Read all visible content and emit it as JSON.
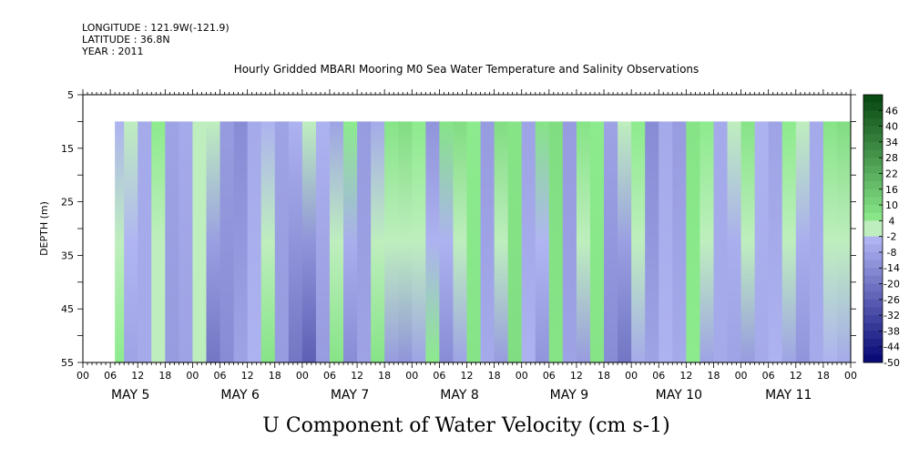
{
  "header": {
    "longitude": "LONGITUDE : 121.9W(-121.9)",
    "latitude": "LATITUDE : 36.8N",
    "year": "YEAR : 2011"
  },
  "chart_data": {
    "type": "heatmap",
    "title": "Hourly Gridded MBARI Mooring M0 Sea Water Temperature and Salinity Observations",
    "xlabel": "U Component of Water Velocity (cm s-1)",
    "ylabel": "DEPTH (m)",
    "y_ticks": [
      "5",
      "15",
      "25",
      "35",
      "45",
      "55"
    ],
    "ylim": [
      5,
      55
    ],
    "y_reversed": true,
    "data_depth_range": [
      10,
      55
    ],
    "x_hour_labels": [
      "00",
      "06",
      "12",
      "18",
      "00",
      "06",
      "12",
      "18",
      "00",
      "06",
      "12",
      "18",
      "00",
      "06",
      "12",
      "18",
      "00",
      "06",
      "12",
      "18",
      "00",
      "06",
      "12",
      "18",
      "00",
      "06",
      "12",
      "18",
      "00"
    ],
    "x_day_labels": [
      "MAY  5",
      "MAY  6",
      "MAY  7",
      "MAY  8",
      "MAY  9",
      "MAY 10",
      "MAY 11"
    ],
    "colorbar_labels": [
      "46",
      "40",
      "34",
      "28",
      "22",
      "16",
      "10",
      "4",
      "-2",
      "-8",
      "-14",
      "-20",
      "-26",
      "-32",
      "-38",
      "-44",
      "-50"
    ],
    "colorbar_range": [
      -50,
      52
    ],
    "data_start_hour": 7,
    "band_hours": [
      7,
      9,
      12,
      15,
      18,
      21,
      24,
      27,
      30,
      33,
      36,
      39,
      42,
      45,
      48,
      51,
      54,
      57,
      60,
      63,
      66,
      69,
      72,
      75,
      78,
      81,
      84,
      87,
      90,
      93,
      96,
      99,
      102,
      105,
      108,
      111,
      114,
      117,
      120,
      123,
      126,
      129,
      132,
      135,
      138,
      141,
      144,
      147,
      150,
      153,
      156,
      159,
      162,
      165,
      168
    ],
    "band_values_surface": [
      -4,
      2,
      -6,
      4,
      -8,
      -6,
      -2,
      2,
      -10,
      -14,
      -6,
      -4,
      -8,
      -4,
      2,
      -4,
      -8,
      4,
      -10,
      -6,
      6,
      8,
      4,
      -12,
      6,
      8,
      4,
      -10,
      8,
      6,
      -8,
      6,
      8,
      -10,
      6,
      4,
      -8,
      2,
      4,
      -14,
      -6,
      -10,
      6,
      4,
      -6,
      -2,
      6,
      -4,
      -8,
      4,
      2,
      -6,
      6,
      8,
      4
    ],
    "band_values_bottom": [
      4,
      -8,
      -6,
      2,
      -10,
      -8,
      2,
      -20,
      -14,
      -8,
      -4,
      6,
      -10,
      -20,
      -26,
      -10,
      6,
      -14,
      -8,
      6,
      -10,
      -12,
      -8,
      4,
      -14,
      -8,
      6,
      -6,
      -10,
      8,
      -4,
      -12,
      6,
      -8,
      -10,
      6,
      -14,
      -20,
      -6,
      -8,
      -4,
      -6,
      4,
      -8,
      -6,
      -8,
      -10,
      -6,
      -4,
      -8,
      -12,
      -6,
      -4,
      -6,
      -8
    ]
  }
}
